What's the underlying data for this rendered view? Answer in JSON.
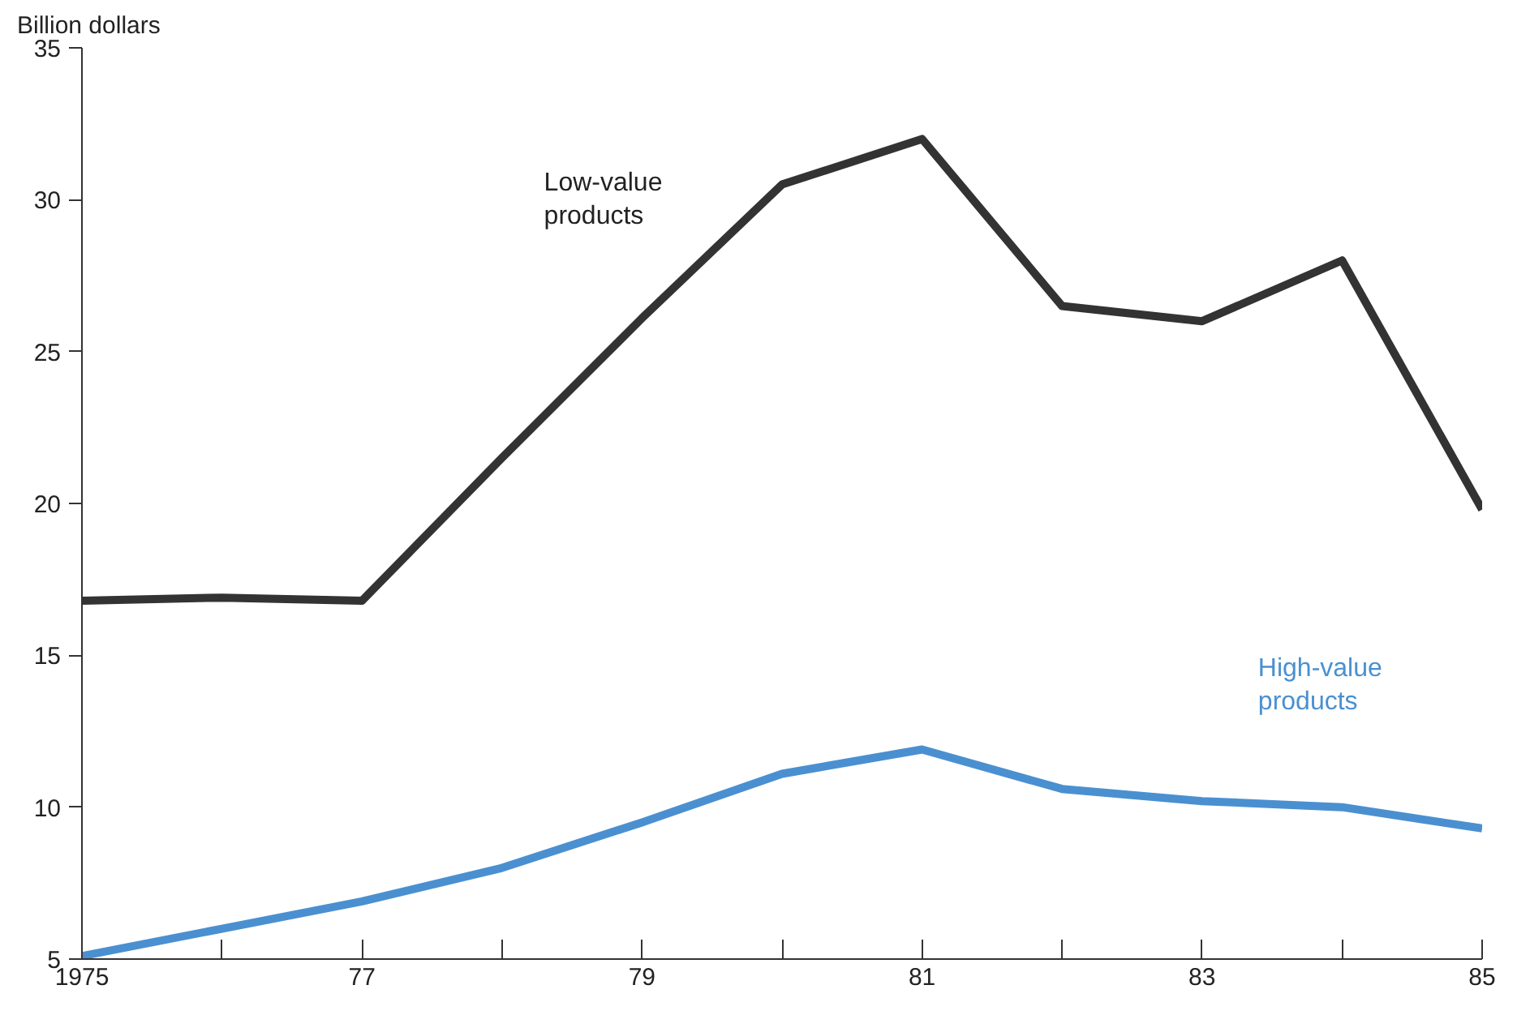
{
  "chart_data": {
    "type": "line",
    "ylabel": "Billion dollars",
    "x": [
      1975,
      1976,
      1977,
      1978,
      1979,
      1980,
      1981,
      1982,
      1983,
      1984,
      1985
    ],
    "series": [
      {
        "name": "Low-value products",
        "color": "#333333",
        "values": [
          16.8,
          16.9,
          16.8,
          21.5,
          26.1,
          30.5,
          32.0,
          26.5,
          26.0,
          28.0,
          19.8
        ]
      },
      {
        "name": "High-value products",
        "color": "#4a90d0",
        "values": [
          5.1,
          6.0,
          6.9,
          8.0,
          9.5,
          11.1,
          11.9,
          10.6,
          10.2,
          10.0,
          9.3
        ]
      }
    ],
    "xlim": [
      1975,
      1985
    ],
    "xticks": [
      1975,
      {
        "value": 1976,
        "label": null
      },
      {
        "value": 1977,
        "label": "77"
      },
      {
        "value": 1978,
        "label": null
      },
      {
        "value": 1979,
        "label": "79"
      },
      {
        "value": 1980,
        "label": null
      },
      {
        "value": 1981,
        "label": "81"
      },
      {
        "value": 1982,
        "label": null
      },
      {
        "value": 1983,
        "label": "83"
      },
      {
        "value": 1984,
        "label": null
      },
      {
        "value": 1985,
        "label": "85"
      }
    ],
    "ylim": [
      5,
      35
    ],
    "yticks": [
      5,
      10,
      15,
      20,
      25,
      30,
      35
    ],
    "grid": false,
    "marker": "none",
    "line_style": "solid"
  }
}
